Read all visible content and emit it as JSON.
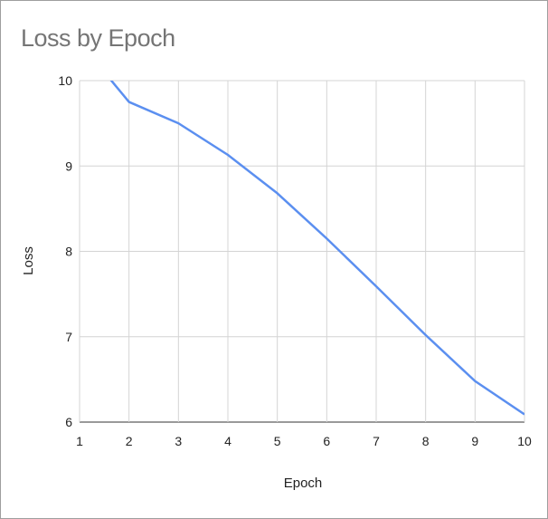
{
  "chart_data": {
    "type": "line",
    "title": "Loss by Epoch",
    "xlabel": "Epoch",
    "ylabel": "Loss",
    "xlim": [
      1,
      10
    ],
    "ylim": [
      6,
      10
    ],
    "xticks": [
      "1",
      "2",
      "3",
      "4",
      "5",
      "6",
      "7",
      "8",
      "9",
      "10"
    ],
    "yticks": [
      "6",
      "7",
      "8",
      "9",
      "10"
    ],
    "grid": true,
    "legend": "none",
    "line_color": "#5b8ff0",
    "series": [
      {
        "x": [
          1,
          2,
          3,
          4,
          5,
          6,
          7,
          8,
          9,
          10
        ],
        "values": [
          10.45,
          9.75,
          9.5,
          9.13,
          8.68,
          8.15,
          7.59,
          7.02,
          6.48,
          6.09
        ]
      }
    ]
  }
}
